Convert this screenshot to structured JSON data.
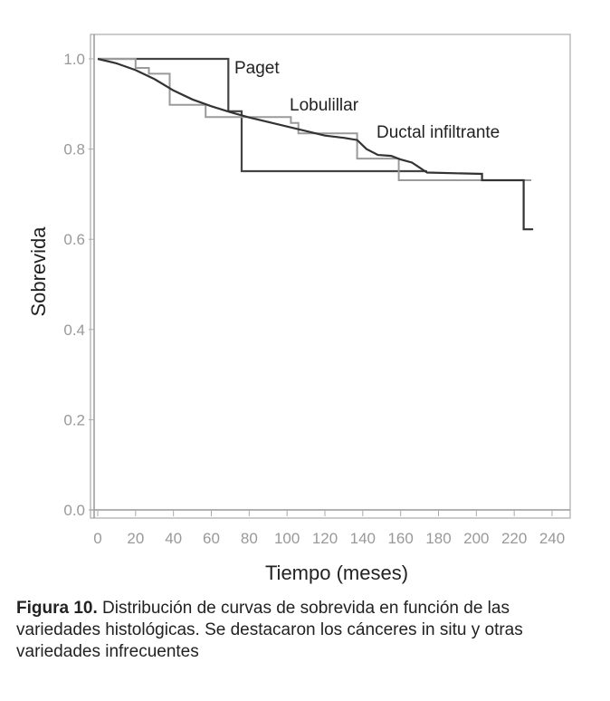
{
  "chart_data": {
    "type": "line",
    "title": "",
    "xlabel": "Tiempo (meses)",
    "ylabel": "Sobrevida",
    "xlim": [
      0,
      240
    ],
    "ylim": [
      0,
      1.0
    ],
    "xticks": [
      "0",
      "20",
      "40",
      "60",
      "80",
      "100",
      "120",
      "140",
      "160",
      "180",
      "200",
      "220",
      "240"
    ],
    "yticks": [
      "0.0",
      "0.2",
      "0.4",
      "0.6",
      "0.8",
      "1.0"
    ],
    "grid": false,
    "series": [
      {
        "name": "Paget",
        "step": true,
        "color": "#444444",
        "x": [
          0,
          69,
          69,
          76,
          76,
          174
        ],
        "y": [
          1.0,
          1.0,
          0.884,
          0.884,
          0.751,
          0.751
        ]
      },
      {
        "name": "Lobulillar",
        "step": true,
        "color": "#9a9a9a",
        "x": [
          0,
          20,
          20,
          27,
          27,
          38,
          38,
          57,
          57,
          102,
          102,
          106,
          106,
          137,
          137,
          159,
          159,
          229
        ],
        "y": [
          1.0,
          1.0,
          0.98,
          0.98,
          0.967,
          0.967,
          0.898,
          0.898,
          0.871,
          0.871,
          0.858,
          0.858,
          0.835,
          0.835,
          0.779,
          0.779,
          0.731,
          0.731
        ]
      },
      {
        "name": "Ductal infiltrante",
        "step": false,
        "color": "#333333",
        "x": [
          0,
          10,
          20,
          30,
          40,
          50,
          60,
          70,
          80,
          90,
          100,
          110,
          120,
          130,
          137,
          142,
          148,
          155,
          160,
          166,
          174,
          203,
          203,
          225,
          225,
          230
        ],
        "y": [
          1.0,
          0.99,
          0.975,
          0.955,
          0.93,
          0.91,
          0.895,
          0.882,
          0.87,
          0.86,
          0.85,
          0.84,
          0.83,
          0.825,
          0.82,
          0.8,
          0.787,
          0.785,
          0.777,
          0.77,
          0.748,
          0.745,
          0.731,
          0.731,
          0.622,
          0.622
        ]
      }
    ],
    "annotations": [
      "Paget",
      "Lobulillar",
      "Ductal infiltrante"
    ]
  },
  "caption": {
    "label": "Figura 10.",
    "text": " Distribución de curvas de sobrevida en función de las variedades histológicas. Se destacaron los cánceres in situ y otras variedades infrecuentes"
  }
}
